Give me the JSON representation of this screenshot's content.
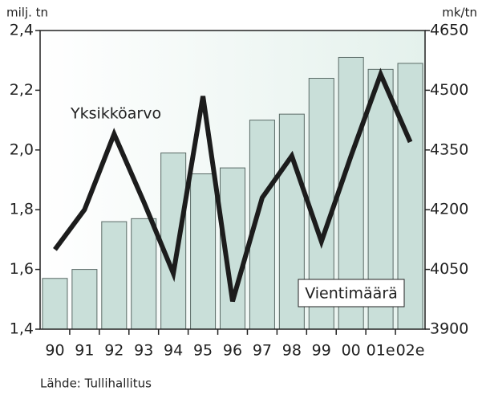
{
  "chart_data": {
    "type": "bar-line",
    "y_label": "milj. tn",
    "y2_label": "mk/tn",
    "source": "Lähde: Tullihallitus",
    "categories": [
      "90",
      "91",
      "92",
      "93",
      "94",
      "95",
      "96",
      "97",
      "98",
      "99",
      "00",
      "01e",
      "02e"
    ],
    "series": [
      {
        "name": "Vientimäärä",
        "type": "bar",
        "color": "#c9dfd9",
        "values": [
          1.57,
          1.6,
          1.76,
          1.77,
          1.99,
          1.92,
          1.94,
          2.1,
          2.12,
          2.24,
          2.31,
          2.27,
          2.29
        ]
      },
      {
        "name": "Yksikköarvo",
        "type": "line",
        "axis": "y2",
        "color": "#1c1c1c",
        "values": [
          4100,
          4200,
          4390,
          4220,
          4040,
          4485,
          3970,
          4230,
          4335,
          4120,
          4335,
          4540,
          4370
        ]
      }
    ],
    "ylim": [
      1.4,
      2.4
    ],
    "yticks": [
      {
        "value": 1.4,
        "label": "1,4"
      },
      {
        "value": 1.6,
        "label": "1,6"
      },
      {
        "value": 1.8,
        "label": "1,8"
      },
      {
        "value": 2.0,
        "label": "2,0"
      },
      {
        "value": 2.2,
        "label": "2,2"
      },
      {
        "value": 2.4,
        "label": "2,4"
      }
    ],
    "y2lim": [
      3900,
      4650
    ],
    "y2ticks": [
      3900,
      4050,
      4200,
      4350,
      4500,
      4650
    ]
  }
}
